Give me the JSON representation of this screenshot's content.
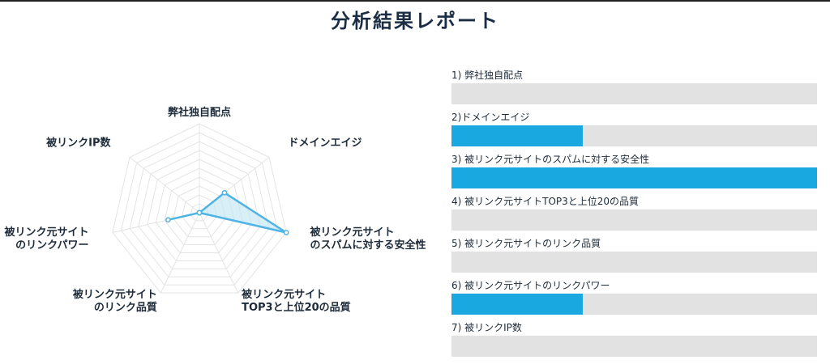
{
  "page": {
    "title": "分析結果レポート"
  },
  "chart_data": {
    "type": "radar",
    "axes": [
      {
        "label_lines": [
          "弊社独自配点"
        ]
      },
      {
        "label_lines": [
          "ドメインエイジ"
        ]
      },
      {
        "label_lines": [
          "被リンク元サイト",
          "のスパムに対する安全性"
        ]
      },
      {
        "label_lines": [
          "被リンク元サイト",
          "TOP3と上位20の品質"
        ]
      },
      {
        "label_lines": [
          "被リンク元サイト",
          "のリンク品質"
        ]
      },
      {
        "label_lines": [
          "被リンク元サイト",
          "のリンクパワー"
        ]
      },
      {
        "label_lines": [
          "被リンクIP数"
        ]
      }
    ],
    "max": 10,
    "grid_levels": 10,
    "values": [
      0,
      3.6,
      10,
      0,
      0,
      3.6,
      0
    ],
    "colors": {
      "line": "#4fb4e4",
      "fill": "#bfe4f4",
      "grid": "#e4e4e4"
    }
  },
  "bar_list": {
    "fill_color": "#1aa8e0",
    "track_color": "#e2e2e2",
    "items": [
      {
        "label": "1) 弊社独自配点",
        "fraction": 0
      },
      {
        "label": "2)ドメインエイジ",
        "fraction": 0.36
      },
      {
        "label": "3) 被リンク元サイトのスパムに対する安全性",
        "fraction": 1.0
      },
      {
        "label": "4) 被リンク元サイトTOP3と上位20の品質",
        "fraction": 0
      },
      {
        "label": "5) 被リンク元サイトのリンク品質",
        "fraction": 0
      },
      {
        "label": "6) 被リンク元サイトのリンクパワー",
        "fraction": 0.36
      },
      {
        "label": "7) 被リンクIP数",
        "fraction": 0
      }
    ]
  }
}
